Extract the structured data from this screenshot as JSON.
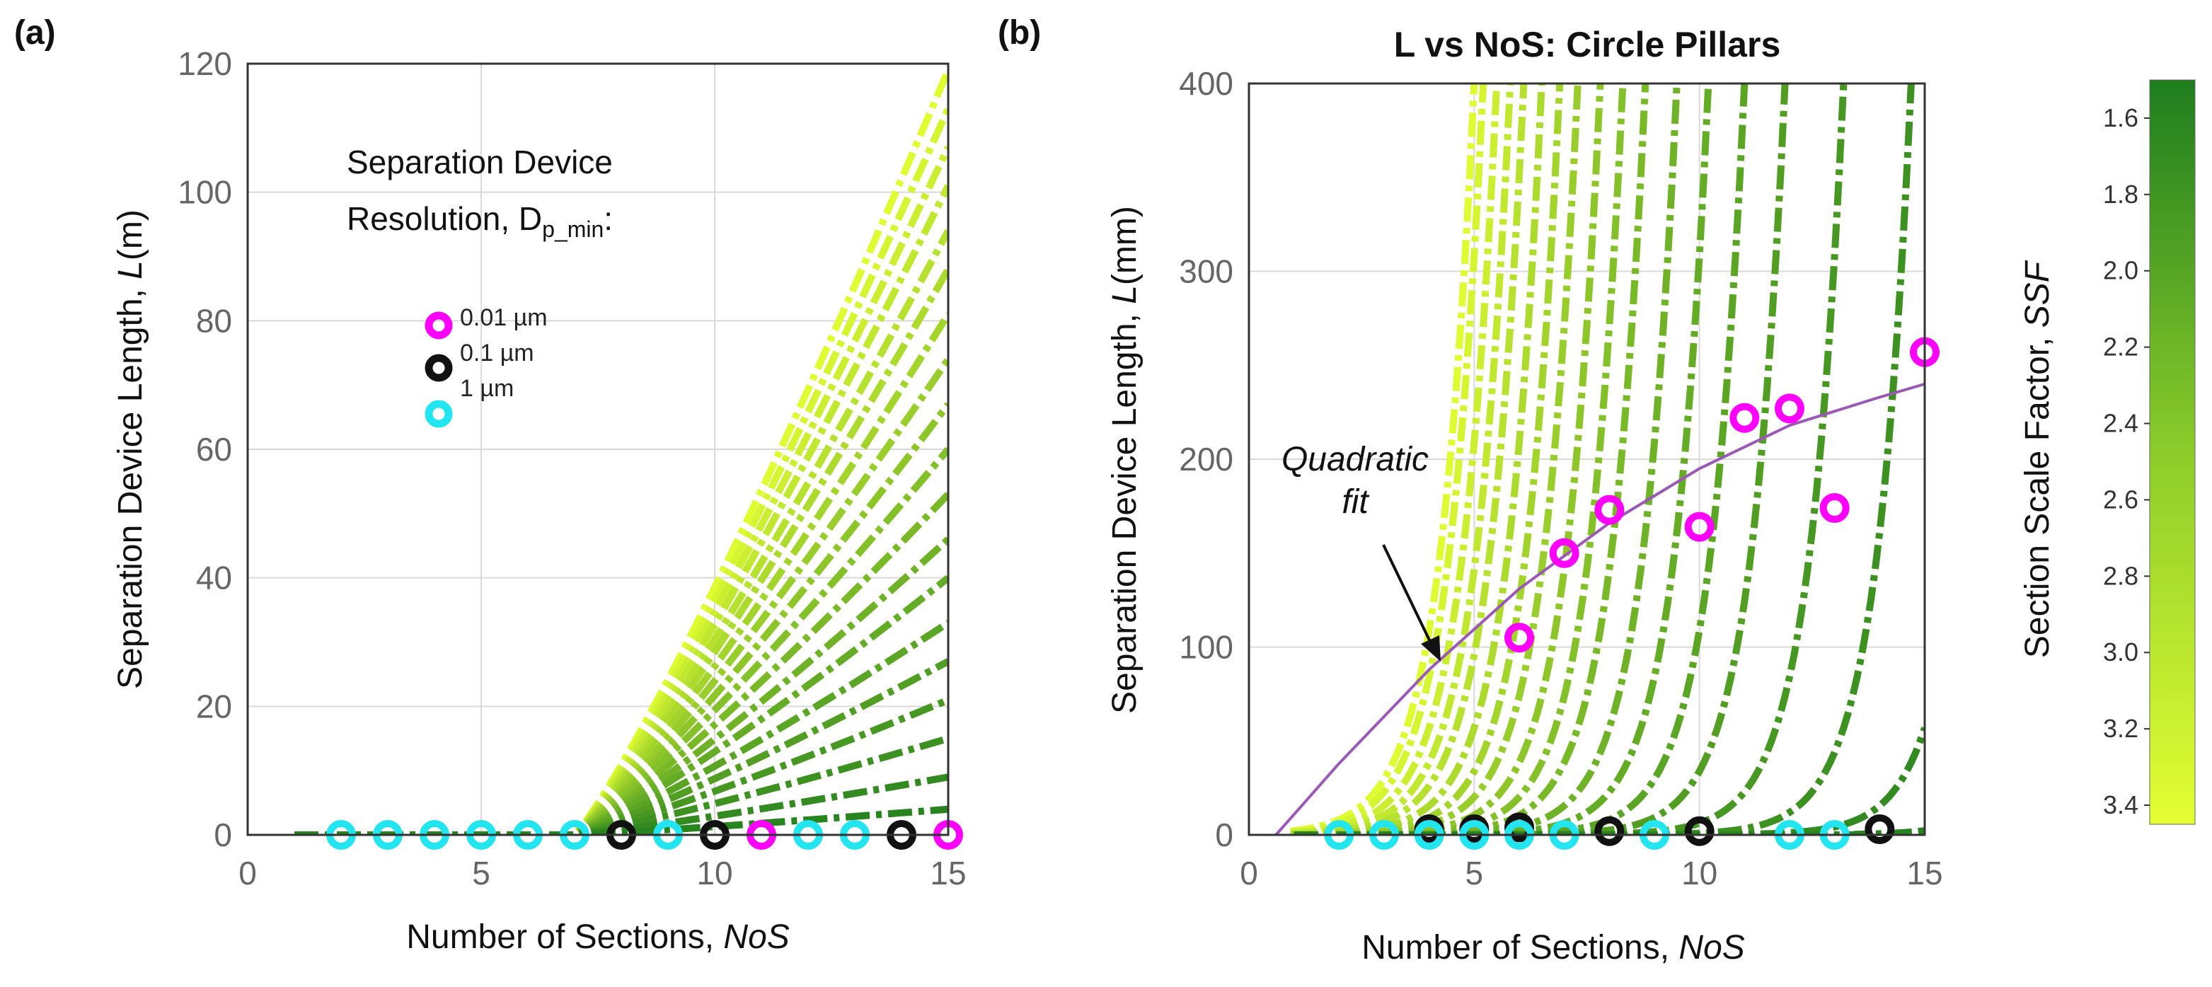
{
  "figure": {
    "panel_a_label": "(a)",
    "panel_b_label": "(b)",
    "colorbar": {
      "label": "Section Scale Factor, ",
      "label_italic": "SSF",
      "ticks": [
        "1.6",
        "1.8",
        "2.0",
        "2.2",
        "2.4",
        "2.6",
        "2.8",
        "3.0",
        "3.2",
        "3.4"
      ],
      "range": [
        1.5,
        3.45
      ],
      "color_low": "#1e7d1e",
      "color_high": "#e4ff33"
    },
    "marker_colors": {
      "0.01 µm": "#ff00ff",
      "0.1 µm": "#111111",
      "1 µm": "#22e5f0"
    }
  },
  "chart_data": [
    {
      "id": "a",
      "type": "line",
      "title": "",
      "xlabel": "Number of Sections, ",
      "xlabel_italic": "NoS",
      "ylabel": "Separation Device Length, ",
      "ylabel_italic": "L",
      "ylabel_unit": "(m)",
      "xlim": [
        0,
        15
      ],
      "ylim": [
        0,
        120
      ],
      "xticks": [
        "0",
        "5",
        "10",
        "15"
      ],
      "yticks": [
        "0",
        "20",
        "40",
        "60",
        "80",
        "100",
        "120"
      ],
      "grid": true,
      "legend_title_line1": "Separation Device",
      "legend_title_line2": "Resolution, D",
      "legend_title_sub": "p_min",
      "legend_title_end": ":",
      "legend": [
        "0.01 µm",
        "0.1 µm",
        "1 µm"
      ],
      "legend_position": "top-middle",
      "ssf_values": [
        3.4,
        3.3,
        3.2,
        3.1,
        3.0,
        2.9,
        2.8,
        2.7,
        2.6,
        2.5,
        2.4,
        2.3,
        2.2,
        2.1,
        2.0,
        1.9,
        1.8,
        1.7,
        1.6
      ],
      "curve_end_values": [
        119,
        113,
        107,
        101,
        94,
        88,
        81,
        74,
        67,
        60,
        53,
        46,
        40,
        33,
        27,
        21,
        15,
        9,
        4
      ],
      "x_start": 1,
      "markers": [
        {
          "x": 2,
          "y": 0,
          "resolution": "1 µm"
        },
        {
          "x": 3,
          "y": 0,
          "resolution": "1 µm"
        },
        {
          "x": 4,
          "y": 0,
          "resolution": "1 µm"
        },
        {
          "x": 5,
          "y": 0,
          "resolution": "1 µm"
        },
        {
          "x": 6,
          "y": 0,
          "resolution": "1 µm"
        },
        {
          "x": 7,
          "y": 0,
          "resolution": "1 µm"
        },
        {
          "x": 8,
          "y": 0,
          "resolution": "0.1 µm"
        },
        {
          "x": 9,
          "y": 0,
          "resolution": "1 µm"
        },
        {
          "x": 10,
          "y": 0,
          "resolution": "0.1 µm"
        },
        {
          "x": 11,
          "y": 0,
          "resolution": "0.01 µm"
        },
        {
          "x": 12,
          "y": 0,
          "resolution": "1 µm"
        },
        {
          "x": 13,
          "y": 0,
          "resolution": "1 µm"
        },
        {
          "x": 14,
          "y": 0,
          "resolution": "0.1 µm"
        },
        {
          "x": 15,
          "y": 0,
          "resolution": "0.01 µm"
        }
      ]
    },
    {
      "id": "b",
      "type": "line",
      "title": "L vs NoS: Circle Pillars",
      "xlabel": "Number of Sections, ",
      "xlabel_italic": "NoS",
      "ylabel": "Separation Device Length, ",
      "ylabel_italic": "L",
      "ylabel_unit": "(mm)",
      "xlim": [
        0,
        15
      ],
      "ylim": [
        0,
        400
      ],
      "xticks": [
        "0",
        "5",
        "10",
        "15"
      ],
      "yticks": [
        "0",
        "100",
        "200",
        "300",
        "400"
      ],
      "grid": true,
      "annotation_line1": "Quadratic",
      "annotation_line2": "fit",
      "fit_points": [
        {
          "x": 0.6,
          "y": 0
        },
        {
          "x": 2,
          "y": 38
        },
        {
          "x": 4,
          "y": 88
        },
        {
          "x": 6,
          "y": 131
        },
        {
          "x": 8,
          "y": 166
        },
        {
          "x": 10,
          "y": 195
        },
        {
          "x": 12,
          "y": 218
        },
        {
          "x": 14,
          "y": 233
        },
        {
          "x": 15,
          "y": 240
        }
      ],
      "fit_color": "#9b59b6",
      "ssf_values": [
        3.4,
        3.3,
        3.2,
        3.1,
        3.0,
        2.9,
        2.8,
        2.7,
        2.6,
        2.5,
        2.4,
        2.3,
        2.2,
        2.1,
        2.0,
        1.9,
        1.8,
        1.7,
        1.6
      ],
      "curve_cross_x": [
        5.0,
        5.2,
        5.5,
        5.8,
        6.1,
        6.5,
        6.9,
        7.3,
        7.8,
        8.3,
        8.8,
        9.5,
        10.2,
        11.0,
        11.9,
        13.2,
        14.7,
        16.5,
        19.0
      ],
      "x_start": 1,
      "markers": [
        {
          "x": 2,
          "y": 0,
          "resolution": "1 µm"
        },
        {
          "x": 3,
          "y": 0,
          "resolution": "1 µm"
        },
        {
          "x": 4,
          "y": 3,
          "resolution": "0.1 µm"
        },
        {
          "x": 4,
          "y": 0,
          "resolution": "1 µm"
        },
        {
          "x": 5,
          "y": 3,
          "resolution": "0.1 µm"
        },
        {
          "x": 5,
          "y": 0,
          "resolution": "1 µm"
        },
        {
          "x": 6,
          "y": 105,
          "resolution": "0.01 µm"
        },
        {
          "x": 6,
          "y": 4,
          "resolution": "0.1 µm"
        },
        {
          "x": 6,
          "y": 0,
          "resolution": "1 µm"
        },
        {
          "x": 7,
          "y": 150,
          "resolution": "0.01 µm"
        },
        {
          "x": 7,
          "y": 0,
          "resolution": "1 µm"
        },
        {
          "x": 8,
          "y": 173,
          "resolution": "0.01 µm"
        },
        {
          "x": 8,
          "y": 2,
          "resolution": "0.1 µm"
        },
        {
          "x": 9,
          "y": 0,
          "resolution": "1 µm"
        },
        {
          "x": 10,
          "y": 164,
          "resolution": "0.01 µm"
        },
        {
          "x": 10,
          "y": 2,
          "resolution": "0.1 µm"
        },
        {
          "x": 11,
          "y": 222,
          "resolution": "0.01 µm"
        },
        {
          "x": 12,
          "y": 227,
          "resolution": "0.01 µm"
        },
        {
          "x": 12,
          "y": 0,
          "resolution": "1 µm"
        },
        {
          "x": 13,
          "y": 174,
          "resolution": "0.01 µm"
        },
        {
          "x": 13,
          "y": 0,
          "resolution": "1 µm"
        },
        {
          "x": 14,
          "y": 3,
          "resolution": "0.1 µm"
        },
        {
          "x": 15,
          "y": 257,
          "resolution": "0.01 µm"
        }
      ]
    }
  ]
}
